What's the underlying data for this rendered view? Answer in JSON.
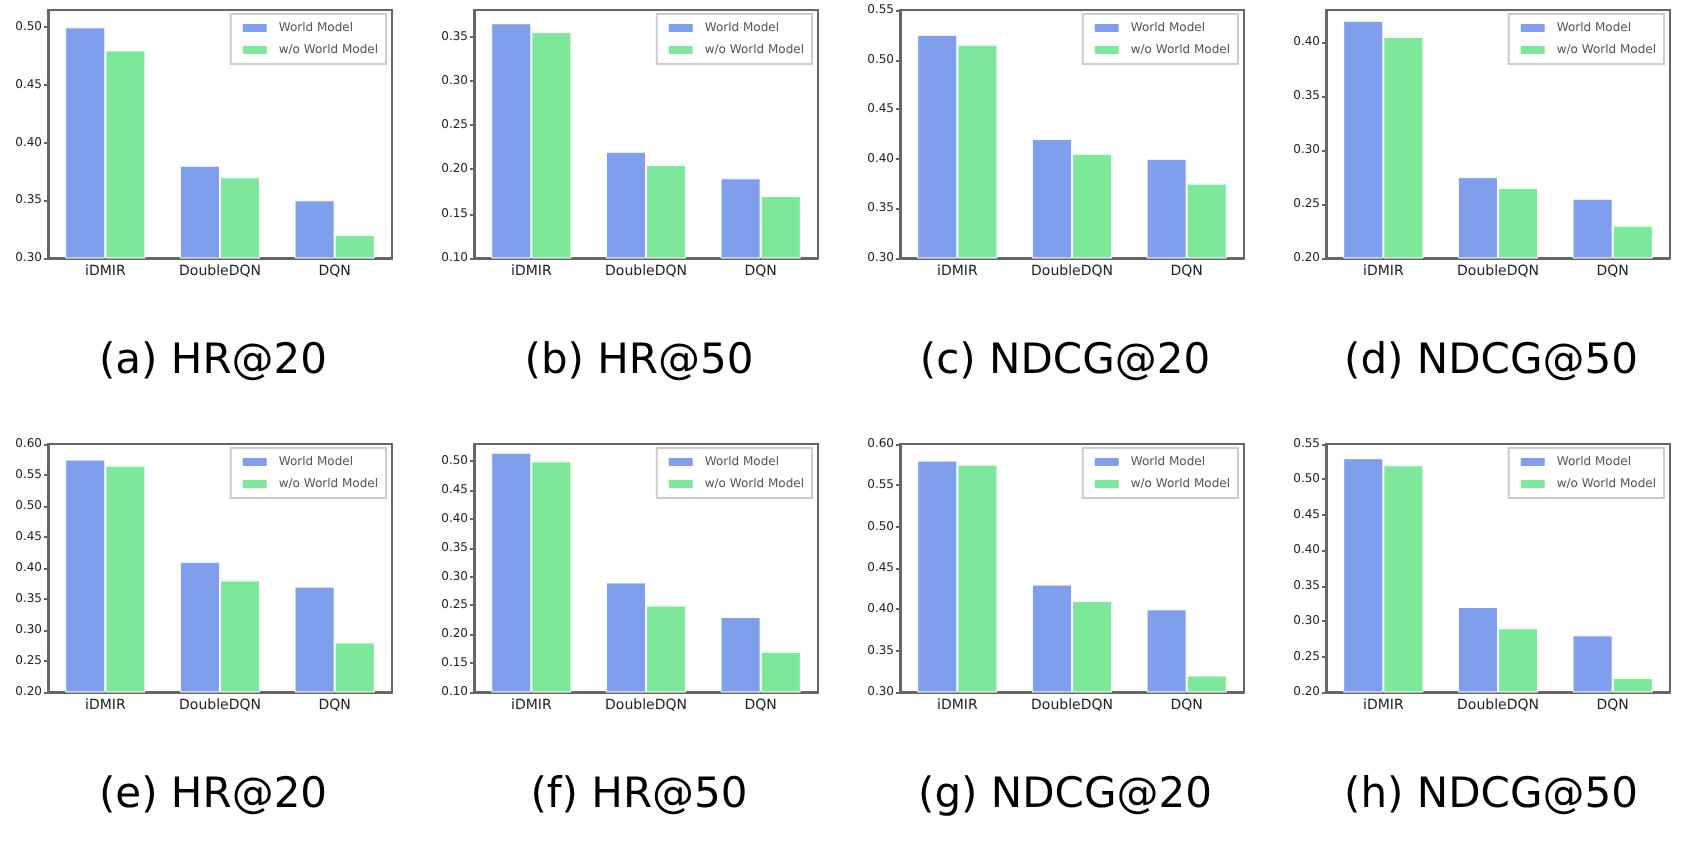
{
  "chart_data": [
    {
      "type": "bar",
      "title": "(a) HR@20",
      "categories": [
        "iDMIR",
        "DoubleDQN",
        "DQN"
      ],
      "series": [
        {
          "name": "World Model",
          "color": "#7f9fec",
          "values": [
            0.5,
            0.38,
            0.35
          ]
        },
        {
          "name": "w/o World Model",
          "color": "#7ee89a",
          "values": [
            0.48,
            0.37,
            0.32
          ]
        }
      ],
      "ylim": [
        0.3,
        0.515
      ],
      "yticks": [
        {
          "value": 0.3,
          "label": "0.30"
        },
        {
          "value": 0.35,
          "label": "0.35"
        },
        {
          "value": 0.4,
          "label": "0.40"
        },
        {
          "value": 0.45,
          "label": "0.45"
        },
        {
          "value": 0.5,
          "label": "0.50"
        }
      ],
      "grid": false,
      "legend": "top right"
    },
    {
      "type": "bar",
      "title": "(b) HR@50",
      "categories": [
        "iDMIR",
        "DoubleDQN",
        "DQN"
      ],
      "series": [
        {
          "name": "World Model",
          "color": "#7f9fec",
          "values": [
            0.365,
            0.22,
            0.19
          ]
        },
        {
          "name": "w/o World Model",
          "color": "#7ee89a",
          "values": [
            0.355,
            0.205,
            0.17
          ]
        }
      ],
      "ylim": [
        0.1,
        0.38
      ],
      "yticks": [
        {
          "value": 0.1,
          "label": "0.10"
        },
        {
          "value": 0.15,
          "label": "0.15"
        },
        {
          "value": 0.2,
          "label": "0.20"
        },
        {
          "value": 0.25,
          "label": "0.25"
        },
        {
          "value": 0.3,
          "label": "0.30"
        },
        {
          "value": 0.35,
          "label": "0.35"
        }
      ],
      "grid": false,
      "legend": "top right"
    },
    {
      "type": "bar",
      "title": "(c) NDCG@20",
      "categories": [
        "iDMIR",
        "DoubleDQN",
        "DQN"
      ],
      "series": [
        {
          "name": "World Model",
          "color": "#7f9fec",
          "values": [
            0.525,
            0.42,
            0.4
          ]
        },
        {
          "name": "w/o World Model",
          "color": "#7ee89a",
          "values": [
            0.515,
            0.405,
            0.375
          ]
        }
      ],
      "ylim": [
        0.3,
        0.55
      ],
      "yticks": [
        {
          "value": 0.3,
          "label": "0.30"
        },
        {
          "value": 0.35,
          "label": "0.35"
        },
        {
          "value": 0.4,
          "label": "0.40"
        },
        {
          "value": 0.45,
          "label": "0.45"
        },
        {
          "value": 0.5,
          "label": "0.50"
        },
        {
          "value": 0.55,
          "label": "0.55"
        }
      ],
      "grid": false,
      "legend": "top right"
    },
    {
      "type": "bar",
      "title": "(d) NDCG@50",
      "categories": [
        "iDMIR",
        "DoubleDQN",
        "DQN"
      ],
      "series": [
        {
          "name": "World Model",
          "color": "#7f9fec",
          "values": [
            0.42,
            0.275,
            0.255
          ]
        },
        {
          "name": "w/o World Model",
          "color": "#7ee89a",
          "values": [
            0.405,
            0.265,
            0.23
          ]
        }
      ],
      "ylim": [
        0.2,
        0.43
      ],
      "yticks": [
        {
          "value": 0.2,
          "label": "0.20"
        },
        {
          "value": 0.25,
          "label": "0.25"
        },
        {
          "value": 0.3,
          "label": "0.30"
        },
        {
          "value": 0.35,
          "label": "0.35"
        },
        {
          "value": 0.4,
          "label": "0.40"
        }
      ],
      "grid": false,
      "legend": "top right"
    },
    {
      "type": "bar",
      "title": "(e) HR@20",
      "categories": [
        "iDMIR",
        "DoubleDQN",
        "DQN"
      ],
      "series": [
        {
          "name": "World Model",
          "color": "#7f9fec",
          "values": [
            0.575,
            0.41,
            0.37
          ]
        },
        {
          "name": "w/o World Model",
          "color": "#7ee89a",
          "values": [
            0.565,
            0.38,
            0.28
          ]
        }
      ],
      "ylim": [
        0.2,
        0.6
      ],
      "yticks": [
        {
          "value": 0.2,
          "label": "0.20"
        },
        {
          "value": 0.25,
          "label": "0.25"
        },
        {
          "value": 0.3,
          "label": "0.30"
        },
        {
          "value": 0.35,
          "label": "0.35"
        },
        {
          "value": 0.4,
          "label": "0.40"
        },
        {
          "value": 0.45,
          "label": "0.45"
        },
        {
          "value": 0.5,
          "label": "0.50"
        },
        {
          "value": 0.55,
          "label": "0.55"
        },
        {
          "value": 0.6,
          "label": "0.60"
        }
      ],
      "grid": false,
      "legend": "top right"
    },
    {
      "type": "bar",
      "title": "(f) HR@50",
      "categories": [
        "iDMIR",
        "DoubleDQN",
        "DQN"
      ],
      "series": [
        {
          "name": "World Model",
          "color": "#7f9fec",
          "values": [
            0.515,
            0.29,
            0.23
          ]
        },
        {
          "name": "w/o World Model",
          "color": "#7ee89a",
          "values": [
            0.5,
            0.25,
            0.17
          ]
        }
      ],
      "ylim": [
        0.1,
        0.53
      ],
      "yticks": [
        {
          "value": 0.1,
          "label": "0.10"
        },
        {
          "value": 0.15,
          "label": "0.15"
        },
        {
          "value": 0.2,
          "label": "0.20"
        },
        {
          "value": 0.25,
          "label": "0.25"
        },
        {
          "value": 0.3,
          "label": "0.30"
        },
        {
          "value": 0.35,
          "label": "0.35"
        },
        {
          "value": 0.4,
          "label": "0.40"
        },
        {
          "value": 0.45,
          "label": "0.45"
        },
        {
          "value": 0.5,
          "label": "0.50"
        }
      ],
      "grid": false,
      "legend": "top right"
    },
    {
      "type": "bar",
      "title": "(g) NDCG@20",
      "categories": [
        "iDMIR",
        "DoubleDQN",
        "DQN"
      ],
      "series": [
        {
          "name": "World Model",
          "color": "#7f9fec",
          "values": [
            0.58,
            0.43,
            0.4
          ]
        },
        {
          "name": "w/o World Model",
          "color": "#7ee89a",
          "values": [
            0.575,
            0.41,
            0.32
          ]
        }
      ],
      "ylim": [
        0.3,
        0.6
      ],
      "yticks": [
        {
          "value": 0.3,
          "label": "0.30"
        },
        {
          "value": 0.35,
          "label": "0.35"
        },
        {
          "value": 0.4,
          "label": "0.40"
        },
        {
          "value": 0.45,
          "label": "0.45"
        },
        {
          "value": 0.5,
          "label": "0.50"
        },
        {
          "value": 0.55,
          "label": "0.55"
        },
        {
          "value": 0.6,
          "label": "0.60"
        }
      ],
      "grid": false,
      "legend": "top right"
    },
    {
      "type": "bar",
      "title": "(h) NDCG@50",
      "categories": [
        "iDMIR",
        "DoubleDQN",
        "DQN"
      ],
      "series": [
        {
          "name": "World Model",
          "color": "#7f9fec",
          "values": [
            0.53,
            0.32,
            0.28
          ]
        },
        {
          "name": "w/o World Model",
          "color": "#7ee89a",
          "values": [
            0.52,
            0.29,
            0.22
          ]
        }
      ],
      "ylim": [
        0.2,
        0.55
      ],
      "yticks": [
        {
          "value": 0.2,
          "label": "0.20"
        },
        {
          "value": 0.25,
          "label": "0.25"
        },
        {
          "value": 0.3,
          "label": "0.30"
        },
        {
          "value": 0.35,
          "label": "0.35"
        },
        {
          "value": 0.4,
          "label": "0.40"
        },
        {
          "value": 0.45,
          "label": "0.45"
        },
        {
          "value": 0.5,
          "label": "0.50"
        },
        {
          "value": 0.55,
          "label": "0.55"
        }
      ],
      "grid": false,
      "legend": "top right"
    }
  ]
}
